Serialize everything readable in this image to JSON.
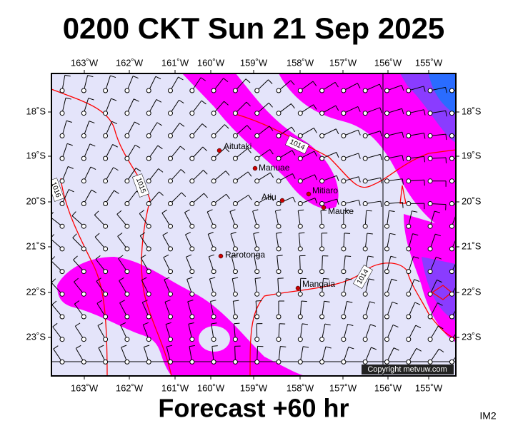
{
  "header": {
    "title": "0200 CKT Sun 21 Sep 2025"
  },
  "map": {
    "lon_labels": [
      "163˚W",
      "162˚W",
      "161˚W",
      "160˚W",
      "159˚W",
      "158˚W",
      "157˚W",
      "156˚W",
      "155˚W"
    ],
    "lat_labels": [
      "18˚S",
      "19˚S",
      "20˚S",
      "21˚S",
      "22˚S",
      "23˚S"
    ],
    "places": [
      "Aitutaki",
      "Manuae",
      "Atiu",
      "Mitiaro",
      "Mauke",
      "Rarotonga",
      "Mangaia"
    ],
    "isobar_labels": [
      "1014",
      "1015",
      "1016",
      "1014"
    ],
    "copyright": "Copyright metvuw.com"
  },
  "footer": {
    "forecast": "Forecast +60 hr",
    "code": "IM2"
  }
}
